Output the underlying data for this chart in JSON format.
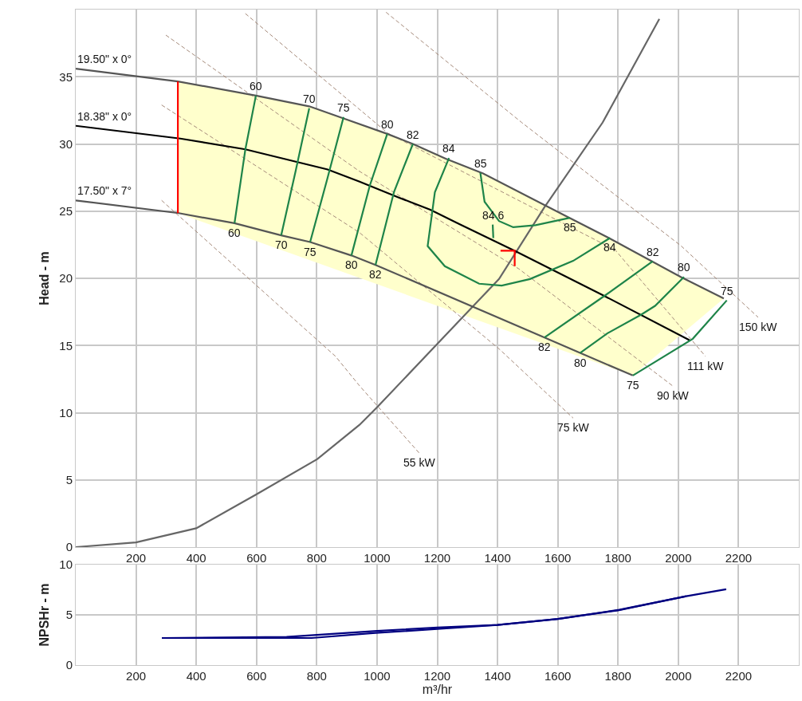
{
  "chart_data": [
    {
      "type": "line",
      "ylabel": "Head - m",
      "xlim": [
        0,
        2400
      ],
      "ylim": [
        0,
        40
      ],
      "xticks": [
        200,
        400,
        600,
        800,
        1000,
        1200,
        1400,
        1600,
        1800,
        2000,
        2200
      ],
      "yticks": [
        0,
        5,
        10,
        15,
        20,
        25,
        30,
        35
      ],
      "grid": true,
      "marker": "none",
      "series": [
        {
          "type": "area",
          "color": "#ffffcc",
          "x": [
            339,
            598,
            775,
            889,
            1034,
            1119,
            1228,
            1352,
            1630,
            1770,
            2008,
            2151,
            1849,
            339
          ],
          "values": [
            34.65,
            33.6,
            32.8,
            31.9,
            30.75,
            30.0,
            28.9,
            27.8,
            24.6,
            23.0,
            20.1,
            18.5,
            12.77,
            24.85
          ]
        },
        {
          "color": "#a58a7a",
          "line_style": "dashed",
          "x": [
            285,
            862,
            942,
            1140
          ],
          "values": [
            25.8,
            14.2,
            12.0,
            7.0
          ]
        },
        {
          "color": "#a58a7a",
          "line_style": "dashed",
          "x": [
            285,
            942,
            1405,
            1651
          ],
          "values": [
            32.9,
            23.4,
            14.75,
            9.6
          ]
        },
        {
          "color": "#a58a7a",
          "line_style": "dashed",
          "x": [
            299,
            942,
            1471,
            1981
          ],
          "values": [
            38.1,
            27.96,
            20.7,
            12.0
          ]
        },
        {
          "color": "#a58a7a",
          "line_style": "dashed",
          "x": [
            563,
            1036,
            1791,
            2090
          ],
          "values": [
            39.7,
            30.8,
            22.1,
            14.2
          ]
        },
        {
          "color": "#a58a7a",
          "line_style": "dashed",
          "x": [
            1030,
            1480,
            2010,
            2265
          ],
          "values": [
            39.8,
            31.6,
            22.4,
            17.1
          ]
        },
        {
          "color": "#666666",
          "x": [
            0,
            200,
            400,
            598,
            802,
            942,
            1000,
            1320,
            1405,
            1556,
            1749,
            1937
          ],
          "values": [
            0,
            0.35,
            1.4,
            3.9,
            6.55,
            9.1,
            10.4,
            17.95,
            19.95,
            25.3,
            31.6,
            39.3
          ]
        },
        {
          "color": "#555555",
          "x": [
            0,
            339,
            598,
            775,
            889,
            1034,
            1119,
            1228,
            1352,
            1630,
            1770,
            2008,
            2151
          ],
          "values": [
            35.6,
            34.65,
            33.6,
            32.8,
            31.9,
            30.75,
            30.0,
            28.9,
            27.8,
            24.6,
            23.0,
            20.1,
            18.5
          ]
        },
        {
          "color": "#555555",
          "x": [
            0,
            342,
            527,
            682,
            778,
            915,
            995,
            1556,
            1674,
            1849
          ],
          "values": [
            25.8,
            24.85,
            24.1,
            23.2,
            22.7,
            21.7,
            21.0,
            15.6,
            14.45,
            12.77
          ]
        },
        {
          "color": "#000000",
          "x": [
            0,
            347,
            563,
            836,
            942,
            1074,
            1177,
            1272,
            1457,
            1745,
            2037
          ],
          "values": [
            31.35,
            30.4,
            29.6,
            28.1,
            27.2,
            26.0,
            25.1,
            24.05,
            22.05,
            18.8,
            15.4
          ]
        },
        {
          "color": "#ff0000",
          "x": [
            339,
            339
          ],
          "values": [
            24.85,
            34.65
          ]
        },
        {
          "color": "#ff0000",
          "x": [
            1410,
            1457,
            1457
          ],
          "values": [
            22.05,
            22.05,
            20.9
          ]
        },
        {
          "color": "#1e8449",
          "x": [
            598,
            563,
            527
          ],
          "values": [
            33.6,
            29.6,
            24.1
          ]
        },
        {
          "color": "#1e8449",
          "x": [
            775,
            730,
            682
          ],
          "values": [
            32.65,
            28.0,
            23.2
          ]
        },
        {
          "color": "#1e8449",
          "x": [
            889,
            835,
            778
          ],
          "values": [
            32.0,
            27.4,
            22.7
          ]
        },
        {
          "color": "#1e8449",
          "x": [
            1034,
            976,
            915
          ],
          "values": [
            30.75,
            26.9,
            21.7
          ]
        },
        {
          "color": "#1e8449",
          "x": [
            1119,
            1056,
            995
          ],
          "values": [
            30.0,
            26.4,
            21.0
          ]
        },
        {
          "color": "#1e8449",
          "x": [
            1239,
            1192,
            1168,
            1225,
            1339,
            1414,
            1508,
            1651,
            1773
          ],
          "values": [
            28.95,
            26.4,
            22.4,
            20.9,
            19.6,
            19.46,
            19.95,
            21.3,
            23.0
          ]
        },
        {
          "color": "#1e8449",
          "x": [
            1343,
            1357,
            1405,
            1452,
            1526,
            1640
          ],
          "values": [
            27.85,
            25.7,
            24.26,
            23.8,
            23.95,
            24.5
          ]
        },
        {
          "color": "#1e8449",
          "x": [
            1384,
            1386
          ],
          "values": [
            24.0,
            23.0
          ]
        },
        {
          "color": "#1e8449",
          "x": [
            1915,
            1754,
            1556
          ],
          "values": [
            21.27,
            18.68,
            15.6
          ]
        },
        {
          "color": "#1e8449",
          "x": [
            2019,
            1923,
            1877,
            1764,
            1674
          ],
          "values": [
            20.1,
            17.95,
            17.3,
            15.9,
            14.45
          ]
        },
        {
          "color": "#1e8449",
          "x": [
            2161,
            2048,
            1849
          ],
          "values": [
            18.36,
            15.5,
            12.77
          ]
        }
      ],
      "annotations": [
        {
          "text": "19.50\" x 0°",
          "x": 0,
          "y": 35.6
        },
        {
          "text": "18.38\" x 0°",
          "x": 0,
          "y": 31.35
        },
        {
          "text": "17.50\" x 7°",
          "x": 0,
          "y": 25.8
        },
        {
          "text": "60",
          "x": 598,
          "y": 33.6
        },
        {
          "text": "70",
          "x": 775,
          "y": 32.65
        },
        {
          "text": "75",
          "x": 889,
          "y": 32.0
        },
        {
          "text": "80",
          "x": 1034,
          "y": 30.75
        },
        {
          "text": "82",
          "x": 1119,
          "y": 30.0
        },
        {
          "text": "84",
          "x": 1239,
          "y": 28.95
        },
        {
          "text": "85",
          "x": 1343,
          "y": 27.85
        },
        {
          "text": "85",
          "x": 1640,
          "y": 24.5
        },
        {
          "text": "84",
          "x": 1773,
          "y": 23.0
        },
        {
          "text": "82",
          "x": 1915,
          "y": 21.27
        },
        {
          "text": "80",
          "x": 2019,
          "y": 20.1
        },
        {
          "text": "75",
          "x": 2161,
          "y": 18.36
        },
        {
          "text": "60",
          "x": 527,
          "y": 24.1
        },
        {
          "text": "70",
          "x": 682,
          "y": 23.2
        },
        {
          "text": "75",
          "x": 778,
          "y": 22.7
        },
        {
          "text": "80",
          "x": 915,
          "y": 21.7
        },
        {
          "text": "82",
          "x": 995,
          "y": 21.0
        },
        {
          "text": "82",
          "x": 1556,
          "y": 15.6
        },
        {
          "text": "80",
          "x": 1674,
          "y": 14.45
        },
        {
          "text": "75",
          "x": 1849,
          "y": 12.77
        },
        {
          "text": "84 6",
          "x": 1384,
          "y": 24.0
        },
        {
          "text": "150 kW",
          "x": 2265,
          "y": 17.1
        },
        {
          "text": "111 kW",
          "x": 2090,
          "y": 14.2
        },
        {
          "text": "90 kW",
          "x": 1981,
          "y": 12.0
        },
        {
          "text": "75 kW",
          "x": 1651,
          "y": 9.6
        },
        {
          "text": "55 kW",
          "x": 1140,
          "y": 7.0
        }
      ]
    },
    {
      "type": "line",
      "ylabel": "NPSHr - m",
      "xlabel": "m³/hr",
      "xlim": [
        0,
        2400
      ],
      "ylim": [
        0,
        10
      ],
      "xticks": [
        200,
        400,
        600,
        800,
        1000,
        1200,
        1400,
        1600,
        1800,
        2000,
        2200
      ],
      "yticks": [
        0,
        5,
        10
      ],
      "grid": true,
      "marker": "none",
      "series": [
        {
          "color": "#000080",
          "x": [
            286,
            700,
            1000,
            1200,
            1400,
            1600,
            1800,
            2026,
            2159
          ],
          "values": [
            2.7,
            2.8,
            3.4,
            3.75,
            4.0,
            4.6,
            5.45,
            6.85,
            7.55
          ]
        },
        {
          "color": "#000080",
          "x": [
            286,
            783,
            995,
            1200,
            1400,
            1600,
            1804,
            2026
          ],
          "values": [
            2.7,
            2.7,
            3.2,
            3.6,
            4.0,
            4.6,
            5.5,
            6.85
          ]
        }
      ]
    }
  ]
}
